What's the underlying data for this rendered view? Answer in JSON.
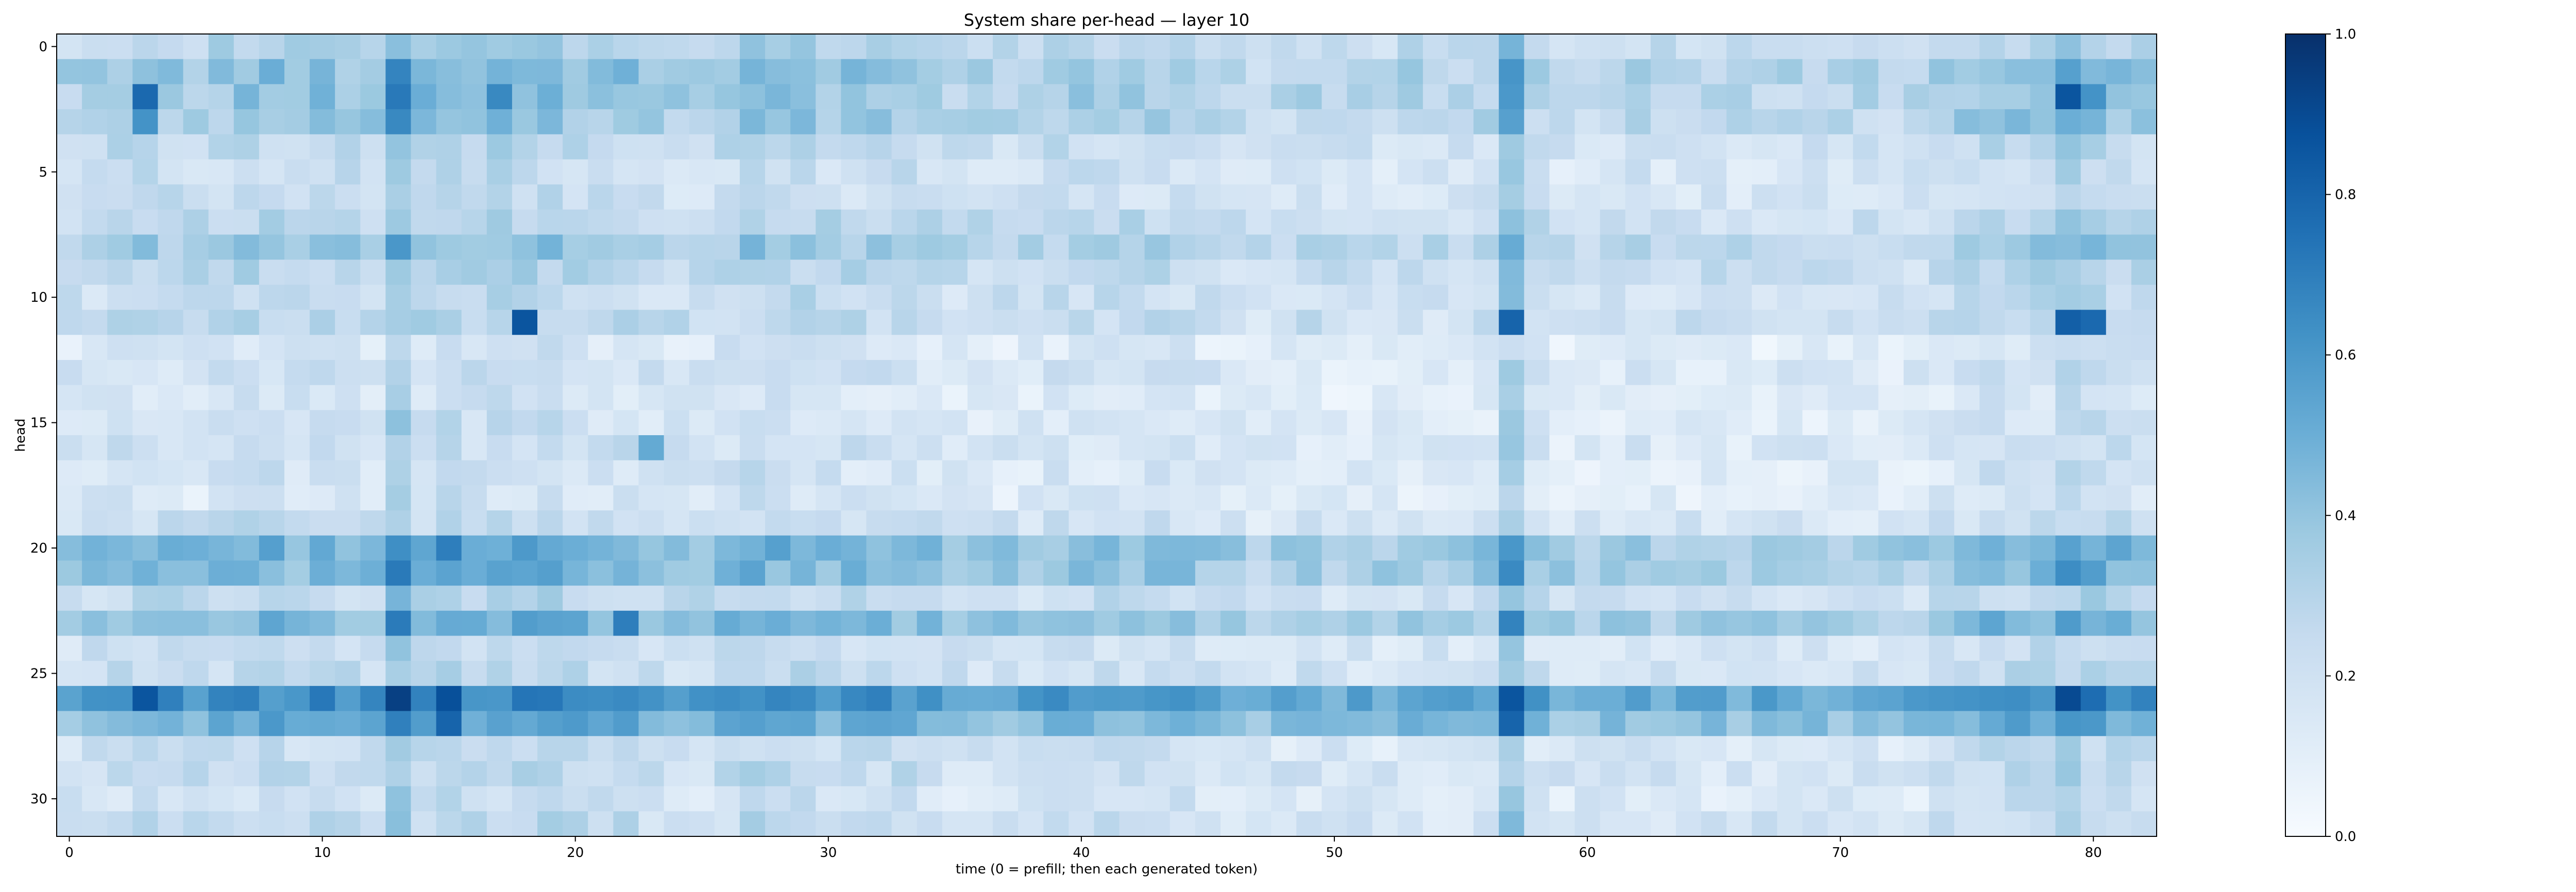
{
  "chart_data": {
    "type": "heatmap",
    "title": "System share per-head — layer 10",
    "xlabel": "time (0 = prefill; then each generated token)",
    "ylabel": "head",
    "rows": 32,
    "cols": 83,
    "x_ticks": [
      0,
      10,
      20,
      30,
      40,
      50,
      60,
      70,
      80
    ],
    "y_ticks": [
      0,
      5,
      10,
      15,
      20,
      25,
      30
    ],
    "colorbar": {
      "colormap": "Blues",
      "low_color": "#f7fbff",
      "high_color": "#08306b",
      "range": [
        0.0,
        1.0
      ],
      "ticks": [
        "0.0",
        "0.2",
        "0.4",
        "0.6",
        "0.8",
        "1.0"
      ]
    },
    "row_base": [
      0.24,
      0.3,
      0.28,
      0.26,
      0.2,
      0.16,
      0.16,
      0.22,
      0.26,
      0.22,
      0.18,
      0.2,
      0.1,
      0.14,
      0.1,
      0.12,
      0.14,
      0.12,
      0.1,
      0.16,
      0.36,
      0.34,
      0.2,
      0.34,
      0.16,
      0.18,
      0.52,
      0.4,
      0.16,
      0.18,
      0.14,
      0.18
    ],
    "col_boost": [
      0.02,
      0.04,
      0.06,
      0.08,
      0.06,
      0.04,
      0.06,
      0.08,
      0.08,
      0.06,
      0.08,
      0.06,
      0.06,
      0.22,
      0.1,
      0.12,
      0.08,
      0.1,
      0.1,
      0.1,
      0.08,
      0.06,
      0.08,
      0.04,
      0.04,
      0.04,
      0.06,
      0.1,
      0.08,
      0.08,
      0.06,
      0.06,
      0.06,
      0.06,
      0.04,
      0.02,
      0.02,
      0.02,
      0.02,
      0.04,
      0.04,
      0.04,
      0.04,
      0.04,
      0.04,
      0.02,
      0.0,
      -0.02,
      0.0,
      0.02,
      0.0,
      0.0,
      0.0,
      0.02,
      0.0,
      0.0,
      0.02,
      0.2,
      0.02,
      0.0,
      0.0,
      0.0,
      0.02,
      0.0,
      0.0,
      0.0,
      0.0,
      0.0,
      0.0,
      0.0,
      0.0,
      0.0,
      0.0,
      0.0,
      0.04,
      0.06,
      0.08,
      0.08,
      0.08,
      0.14,
      0.12,
      0.08,
      0.06
    ],
    "hotspots": [
      {
        "r": 2,
        "c": 3,
        "v": 0.78
      },
      {
        "r": 2,
        "c": 13,
        "v": 0.72
      },
      {
        "r": 2,
        "c": 17,
        "v": 0.66
      },
      {
        "r": 2,
        "c": 79,
        "v": 0.86
      },
      {
        "r": 2,
        "c": 80,
        "v": 0.62
      },
      {
        "r": 3,
        "c": 3,
        "v": 0.62
      },
      {
        "r": 3,
        "c": 13,
        "v": 0.66
      },
      {
        "r": 11,
        "c": 18,
        "v": 0.86
      },
      {
        "r": 11,
        "c": 57,
        "v": 0.8
      },
      {
        "r": 11,
        "c": 79,
        "v": 0.82
      },
      {
        "r": 11,
        "c": 80,
        "v": 0.78
      },
      {
        "r": 16,
        "c": 23,
        "v": 0.52
      },
      {
        "r": 26,
        "c": 3,
        "v": 0.86
      },
      {
        "r": 26,
        "c": 13,
        "v": 0.94
      },
      {
        "r": 26,
        "c": 15,
        "v": 0.88
      },
      {
        "r": 26,
        "c": 57,
        "v": 0.86
      },
      {
        "r": 26,
        "c": 79,
        "v": 0.9
      },
      {
        "r": 27,
        "c": 57,
        "v": 0.8
      },
      {
        "r": 27,
        "c": 15,
        "v": 0.8
      },
      {
        "r": 23,
        "c": 22,
        "v": 0.7
      },
      {
        "r": 20,
        "c": 15,
        "v": 0.7
      }
    ]
  }
}
